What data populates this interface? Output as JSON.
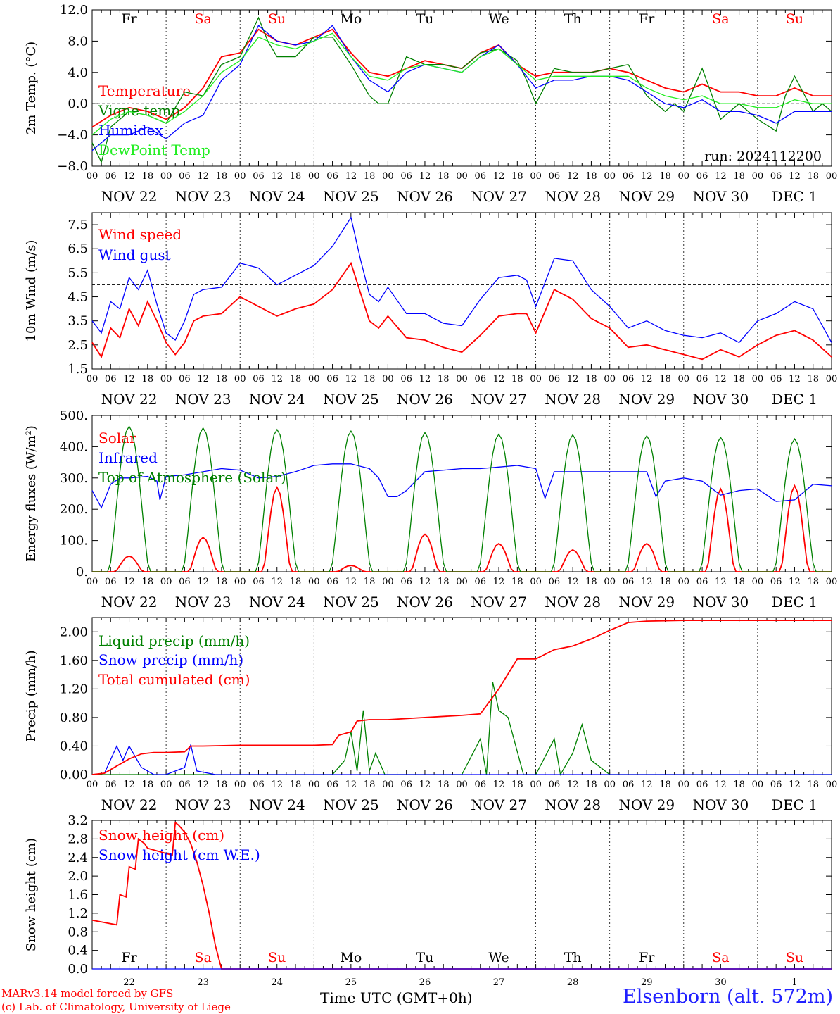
{
  "days": {
    "weekday": [
      "Fr",
      "Sa",
      "Su",
      "Mo",
      "Tu",
      "We",
      "Th",
      "Fr",
      "Sa",
      "Su"
    ],
    "weekend": [
      false,
      true,
      true,
      false,
      false,
      false,
      false,
      false,
      true,
      true
    ],
    "date_labels": [
      "NOV 22",
      "NOV 23",
      "NOV 24",
      "NOV 25",
      "NOV 26",
      "NOV 27",
      "NOV 28",
      "NOV 29",
      "NOV 30",
      "DEC  1"
    ],
    "day_numbers": [
      "22",
      "23",
      "24",
      "25",
      "26",
      "27",
      "28",
      "29",
      "30",
      "1"
    ],
    "hour_ticks": [
      "00",
      "06",
      "12",
      "18"
    ],
    "final_hour": "00"
  },
  "footer": {
    "model_line": "MARv3.14 model forced by GFS",
    "lab_line": "(c) Lab. of Climatology, University of Liege",
    "time_axis": "Time UTC (GMT+0h)",
    "station": "Elsenborn (alt. 572m)"
  },
  "colors": {
    "red": "#ff0000",
    "green": "#008000",
    "blue": "#0000ff",
    "lightgreen": "#22ee22"
  },
  "chart_data": [
    {
      "type": "line",
      "ylabel": "2m Temp. (°C)",
      "ylim": [
        -8,
        12
      ],
      "yticks": [
        "12.0",
        "8.0",
        "4.0",
        "0.0",
        "−4.0",
        "−8.0"
      ],
      "ytick_values": [
        12,
        8,
        4,
        0,
        -4,
        -8
      ],
      "ref_line": 0,
      "run_label": "run: 2024112200",
      "x_units": "hours since NOV 22 00 UTC",
      "series": [
        {
          "name": "Temperature",
          "color": "red",
          "x": [
            0,
            6,
            12,
            18,
            24,
            30,
            36,
            42,
            48,
            54,
            60,
            66,
            72,
            78,
            84,
            90,
            96,
            102,
            108,
            114,
            120,
            126,
            132,
            138,
            144,
            150,
            156,
            162,
            168,
            174,
            180,
            186,
            192,
            198,
            204,
            210,
            216,
            222,
            228,
            234,
            240
          ],
          "values": [
            -3,
            -1.5,
            -0.5,
            -1,
            -2,
            -0.5,
            2,
            6,
            6.5,
            9.5,
            8,
            7.5,
            8.5,
            9.5,
            6.5,
            4,
            3.5,
            4.5,
            5.5,
            5,
            4.5,
            6.5,
            7.5,
            5,
            3.5,
            4,
            4,
            4,
            4.5,
            4,
            3,
            2,
            1.5,
            2.5,
            1.5,
            1.5,
            1,
            1,
            2,
            1,
            1
          ]
        },
        {
          "name": "Vigne temp",
          "color": "green",
          "x": [
            0,
            3,
            6,
            12,
            18,
            24,
            30,
            36,
            42,
            48,
            54,
            57,
            60,
            66,
            72,
            78,
            84,
            90,
            93,
            96,
            102,
            108,
            114,
            120,
            126,
            132,
            138,
            141,
            144,
            150,
            156,
            162,
            168,
            174,
            180,
            186,
            189,
            192,
            198,
            204,
            207,
            210,
            216,
            222,
            225,
            228,
            234,
            237,
            240
          ],
          "values": [
            -5,
            -7.5,
            -3,
            -1,
            -1.5,
            -2.5,
            1.5,
            1,
            5,
            6,
            11,
            8,
            6,
            6,
            8.5,
            8.5,
            5,
            1,
            0,
            0,
            6,
            5,
            5,
            4.5,
            6.5,
            7,
            5.5,
            3,
            0,
            4.5,
            4,
            4,
            4.5,
            5,
            1,
            -1,
            0,
            -1,
            4.5,
            -2,
            -1,
            0,
            -2,
            -3.5,
            1,
            3.5,
            -1,
            0,
            -1
          ]
        },
        {
          "name": "Humidex",
          "color": "blue",
          "x": [
            0,
            6,
            12,
            18,
            24,
            30,
            36,
            42,
            48,
            54,
            60,
            66,
            72,
            78,
            84,
            90,
            96,
            102,
            108,
            114,
            120,
            126,
            132,
            138,
            144,
            150,
            156,
            162,
            168,
            174,
            180,
            186,
            192,
            198,
            204,
            210,
            216,
            222,
            228,
            234,
            240
          ],
          "values": [
            -6,
            -4,
            -4,
            -3,
            -4.5,
            -2.5,
            -1.5,
            3,
            5,
            10,
            8,
            7.5,
            8,
            10,
            6,
            3,
            1.5,
            4,
            5,
            4.5,
            4,
            6,
            7.5,
            5,
            2,
            3,
            3,
            3.5,
            3.5,
            3,
            1.5,
            0,
            -0.5,
            0.5,
            -1,
            -1,
            -1.5,
            -2.5,
            -1,
            -1,
            -1
          ]
        },
        {
          "name": "DewPoint Temp",
          "color": "lightgreen",
          "x": [
            0,
            6,
            12,
            18,
            24,
            30,
            36,
            42,
            48,
            54,
            60,
            66,
            72,
            78,
            84,
            90,
            96,
            102,
            108,
            114,
            120,
            126,
            132,
            138,
            144,
            150,
            156,
            162,
            168,
            174,
            180,
            186,
            192,
            198,
            204,
            210,
            216,
            222,
            228,
            234,
            240
          ],
          "values": [
            -4,
            -2,
            -1,
            -1.5,
            -2.5,
            -1,
            1,
            4,
            5.5,
            8.5,
            7.5,
            7,
            8,
            9,
            6,
            3.5,
            3,
            4.5,
            5,
            4.5,
            4,
            6,
            7,
            5,
            3,
            3.5,
            3.5,
            3.5,
            3.5,
            3.5,
            2,
            1,
            0.5,
            1,
            0,
            0,
            -0.5,
            -0.5,
            0.5,
            0,
            0
          ]
        }
      ]
    },
    {
      "type": "line",
      "ylabel": "10m Wind (m/s)",
      "ylim": [
        1.5,
        8
      ],
      "yticks": [
        "7.5",
        "6.5",
        "5.5",
        "4.5",
        "3.5",
        "2.5",
        "1.5"
      ],
      "ytick_values": [
        7.5,
        6.5,
        5.5,
        4.5,
        3.5,
        2.5,
        1.5
      ],
      "ref_line": 5,
      "series": [
        {
          "name": "Wind speed",
          "color": "red",
          "x": [
            0,
            3,
            6,
            9,
            12,
            15,
            18,
            21,
            24,
            27,
            30,
            33,
            36,
            42,
            48,
            54,
            60,
            66,
            72,
            78,
            84,
            87,
            90,
            93,
            96,
            102,
            108,
            114,
            120,
            126,
            132,
            138,
            141,
            144,
            150,
            156,
            162,
            168,
            174,
            180,
            186,
            192,
            198,
            204,
            210,
            216,
            222,
            228,
            234,
            240
          ],
          "values": [
            2.6,
            2,
            3.2,
            2.8,
            4,
            3.3,
            4.3,
            3.5,
            2.6,
            2.1,
            2.6,
            3.5,
            3.7,
            3.8,
            4.5,
            4.1,
            3.7,
            4,
            4.2,
            4.8,
            5.9,
            4.7,
            3.5,
            3.2,
            3.7,
            2.8,
            2.7,
            2.4,
            2.2,
            2.9,
            3.7,
            3.8,
            3.8,
            3,
            4.8,
            4.4,
            3.6,
            3.2,
            2.4,
            2.5,
            2.3,
            2.1,
            1.9,
            2.3,
            2,
            2.5,
            2.9,
            3.1,
            2.7,
            2
          ]
        },
        {
          "name": "Wind gust",
          "color": "blue",
          "x": [
            0,
            3,
            6,
            9,
            12,
            15,
            18,
            21,
            24,
            27,
            30,
            33,
            36,
            42,
            48,
            54,
            60,
            66,
            72,
            78,
            84,
            87,
            90,
            93,
            96,
            102,
            108,
            114,
            120,
            126,
            132,
            138,
            141,
            144,
            150,
            156,
            162,
            168,
            174,
            180,
            186,
            192,
            198,
            204,
            210,
            216,
            222,
            228,
            234,
            240
          ],
          "values": [
            3.5,
            3,
            4.3,
            4,
            5.3,
            4.8,
            5.6,
            4.2,
            3,
            2.7,
            3.5,
            4.6,
            4.8,
            4.9,
            5.9,
            5.7,
            5,
            5.4,
            5.8,
            6.6,
            7.8,
            6.1,
            4.6,
            4.3,
            4.9,
            3.8,
            3.8,
            3.4,
            3.3,
            4.4,
            5.3,
            5.4,
            5.2,
            4.1,
            6.1,
            6,
            4.8,
            4.1,
            3.2,
            3.5,
            3.1,
            2.9,
            2.8,
            3,
            2.6,
            3.5,
            3.8,
            4.3,
            4,
            2.6
          ]
        }
      ]
    },
    {
      "type": "line",
      "ylabel": "Energy fluxes (W/m²)",
      "ylim": [
        0,
        500
      ],
      "yticks": [
        "500.",
        "400.",
        "300.",
        "200.",
        "100.",
        "0."
      ],
      "ytick_values": [
        500,
        400,
        300,
        200,
        100,
        0
      ],
      "series": [
        {
          "name": "Solar",
          "color": "red",
          "days_peak": [
            50,
            110,
            270,
            20,
            120,
            90,
            70,
            90,
            265,
            275
          ]
        },
        {
          "name": "Infrared",
          "color": "blue",
          "x": [
            0,
            3,
            6,
            9,
            12,
            18,
            21,
            22,
            24,
            30,
            36,
            42,
            48,
            54,
            60,
            66,
            72,
            78,
            84,
            90,
            93,
            96,
            99,
            102,
            108,
            114,
            120,
            126,
            132,
            138,
            144,
            147,
            150,
            156,
            162,
            168,
            174,
            180,
            183,
            186,
            192,
            198,
            204,
            210,
            216,
            222,
            228,
            234,
            240
          ],
          "values": [
            260,
            205,
            280,
            300,
            300,
            305,
            290,
            230,
            305,
            310,
            320,
            330,
            325,
            300,
            305,
            320,
            340,
            345,
            345,
            330,
            300,
            240,
            240,
            260,
            320,
            325,
            330,
            330,
            335,
            340,
            330,
            235,
            320,
            320,
            320,
            320,
            320,
            320,
            240,
            290,
            300,
            290,
            245,
            260,
            265,
            225,
            230,
            280,
            275
          ]
        },
        {
          "name": "Top of Atmosphere (Solar)",
          "color": "green",
          "days_peak": [
            465,
            460,
            455,
            450,
            445,
            440,
            438,
            435,
            430,
            425
          ]
        }
      ]
    },
    {
      "type": "line",
      "ylabel": "Precip (mm/h)",
      "ylim": [
        0,
        2.2
      ],
      "yticks": [
        "2.00",
        "1.60",
        "1.20",
        "0.80",
        "0.40",
        "0.00"
      ],
      "ytick_values": [
        2,
        1.6,
        1.2,
        0.8,
        0.4,
        0
      ],
      "series": [
        {
          "name": "Liquid precip (mm/h)",
          "color": "green",
          "x": [
            0,
            78,
            82,
            84,
            86,
            88,
            90,
            92,
            95,
            120,
            126,
            128,
            130,
            132,
            135,
            140,
            144,
            150,
            152,
            156,
            159,
            162,
            168,
            240
          ],
          "values": [
            0,
            0,
            0.2,
            0.6,
            0.05,
            0.9,
            0.05,
            0.3,
            0,
            0,
            0.5,
            0,
            1.3,
            0.9,
            0.8,
            0,
            0,
            0.5,
            0,
            0.3,
            0.7,
            0.2,
            0,
            0
          ]
        },
        {
          "name": "Snow precip (mm/h)",
          "color": "blue",
          "x": [
            0,
            4,
            8,
            10,
            12,
            14,
            16,
            20,
            24,
            30,
            32,
            34,
            40,
            240
          ],
          "values": [
            0,
            0.02,
            0.4,
            0.2,
            0.4,
            0.25,
            0.1,
            0,
            0,
            0.1,
            0.42,
            0.05,
            0,
            0
          ]
        },
        {
          "name": "Total cumulated (cm)",
          "color": "red",
          "x": [
            0,
            4,
            8,
            12,
            16,
            20,
            24,
            30,
            32,
            36,
            48,
            60,
            72,
            78,
            80,
            84,
            86,
            90,
            96,
            108,
            120,
            126,
            132,
            138,
            144,
            150,
            156,
            162,
            168,
            174,
            180,
            192,
            240
          ],
          "values": [
            0,
            0.02,
            0.12,
            0.22,
            0.29,
            0.31,
            0.31,
            0.32,
            0.4,
            0.4,
            0.41,
            0.41,
            0.41,
            0.42,
            0.55,
            0.6,
            0.75,
            0.77,
            0.77,
            0.8,
            0.83,
            0.85,
            1.2,
            1.62,
            1.62,
            1.75,
            1.8,
            1.9,
            2.02,
            2.13,
            2.15,
            2.16,
            2.16
          ]
        }
      ]
    },
    {
      "type": "line",
      "ylabel": "Snow height (cm)",
      "ylim": [
        0,
        3.2
      ],
      "yticks": [
        "3.2",
        "2.8",
        "2.4",
        "2.0",
        "1.6",
        "1.2",
        "0.8",
        "0.4",
        "0.0"
      ],
      "ytick_values": [
        3.2,
        2.8,
        2.4,
        2,
        1.6,
        1.2,
        0.8,
        0.4,
        0
      ],
      "series": [
        {
          "name": "Snow height (cm)",
          "color": "red",
          "x": [
            0,
            8,
            9,
            11,
            12,
            14,
            15,
            17,
            18,
            26,
            27,
            28,
            30,
            32,
            34,
            36,
            38,
            40,
            42,
            48,
            240
          ],
          "values": [
            1.05,
            0.95,
            1.6,
            1.55,
            2.2,
            2.15,
            2.8,
            2.7,
            2.6,
            2.45,
            3.15,
            3.1,
            2.95,
            2.7,
            2.3,
            1.8,
            1.2,
            0.5,
            0,
            0,
            0
          ]
        },
        {
          "name": "Snow height (cm W.E.)",
          "color": "blue",
          "x": [
            0,
            240
          ],
          "values": [
            0,
            0
          ]
        }
      ]
    }
  ]
}
